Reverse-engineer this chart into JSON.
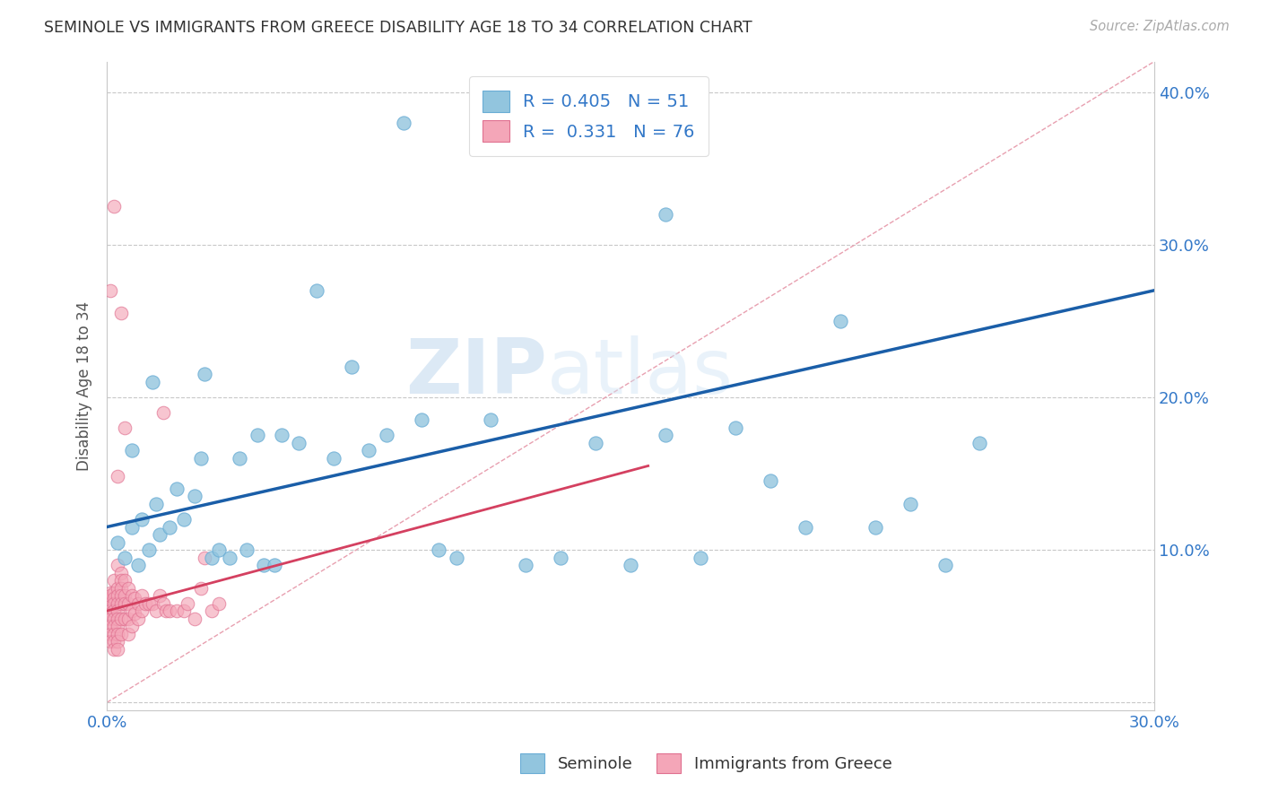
{
  "title": "SEMINOLE VS IMMIGRANTS FROM GREECE DISABILITY AGE 18 TO 34 CORRELATION CHART",
  "source": "Source: ZipAtlas.com",
  "ylabel_text": "Disability Age 18 to 34",
  "xlim": [
    0.0,
    0.3
  ],
  "ylim": [
    -0.005,
    0.42
  ],
  "xticks": [
    0.0,
    0.05,
    0.1,
    0.15,
    0.2,
    0.25,
    0.3
  ],
  "yticks": [
    0.0,
    0.1,
    0.2,
    0.3,
    0.4
  ],
  "color_blue": "#92c5de",
  "color_pink": "#f4a6b8",
  "color_blue_line": "#1a5ea8",
  "color_pink_line": "#d44060",
  "color_diag": "#e8b0bc",
  "blue_R": 0.405,
  "blue_N": 51,
  "pink_R": 0.331,
  "pink_N": 76,
  "watermark_zip": "ZIP",
  "watermark_atlas": "atlas",
  "background_color": "#ffffff",
  "grid_color": "#c8c8c8",
  "seminole_x": [
    0.003,
    0.005,
    0.007,
    0.009,
    0.01,
    0.012,
    0.014,
    0.015,
    0.018,
    0.02,
    0.022,
    0.025,
    0.027,
    0.03,
    0.032,
    0.035,
    0.038,
    0.04,
    0.043,
    0.045,
    0.05,
    0.055,
    0.06,
    0.065,
    0.07,
    0.075,
    0.08,
    0.09,
    0.095,
    0.1,
    0.11,
    0.12,
    0.13,
    0.14,
    0.15,
    0.16,
    0.17,
    0.18,
    0.19,
    0.2,
    0.21,
    0.22,
    0.23,
    0.24,
    0.25,
    0.007,
    0.013,
    0.028,
    0.048,
    0.085,
    0.16
  ],
  "seminole_y": [
    0.105,
    0.095,
    0.115,
    0.09,
    0.12,
    0.1,
    0.13,
    0.11,
    0.115,
    0.14,
    0.12,
    0.135,
    0.16,
    0.095,
    0.1,
    0.095,
    0.16,
    0.1,
    0.175,
    0.09,
    0.175,
    0.17,
    0.27,
    0.16,
    0.22,
    0.165,
    0.175,
    0.185,
    0.1,
    0.095,
    0.185,
    0.09,
    0.095,
    0.17,
    0.09,
    0.175,
    0.095,
    0.18,
    0.145,
    0.115,
    0.25,
    0.115,
    0.13,
    0.09,
    0.17,
    0.165,
    0.21,
    0.215,
    0.09,
    0.38,
    0.32
  ],
  "greece_x": [
    0.001,
    0.001,
    0.001,
    0.001,
    0.001,
    0.001,
    0.001,
    0.001,
    0.001,
    0.001,
    0.002,
    0.002,
    0.002,
    0.002,
    0.002,
    0.002,
    0.002,
    0.002,
    0.002,
    0.002,
    0.003,
    0.003,
    0.003,
    0.003,
    0.003,
    0.003,
    0.003,
    0.003,
    0.003,
    0.003,
    0.004,
    0.004,
    0.004,
    0.004,
    0.004,
    0.004,
    0.004,
    0.005,
    0.005,
    0.005,
    0.005,
    0.006,
    0.006,
    0.006,
    0.006,
    0.007,
    0.007,
    0.007,
    0.008,
    0.008,
    0.009,
    0.009,
    0.01,
    0.01,
    0.011,
    0.012,
    0.013,
    0.014,
    0.015,
    0.016,
    0.017,
    0.018,
    0.02,
    0.022,
    0.023,
    0.025,
    0.027,
    0.028,
    0.03,
    0.032,
    0.004,
    0.016,
    0.005,
    0.002,
    0.003,
    0.001
  ],
  "greece_y": [
    0.068,
    0.072,
    0.065,
    0.06,
    0.058,
    0.055,
    0.05,
    0.045,
    0.04,
    0.07,
    0.072,
    0.068,
    0.065,
    0.06,
    0.055,
    0.05,
    0.045,
    0.04,
    0.035,
    0.08,
    0.075,
    0.07,
    0.065,
    0.06,
    0.055,
    0.05,
    0.045,
    0.04,
    0.035,
    0.09,
    0.085,
    0.08,
    0.075,
    0.07,
    0.065,
    0.055,
    0.045,
    0.08,
    0.07,
    0.065,
    0.055,
    0.075,
    0.065,
    0.055,
    0.045,
    0.07,
    0.06,
    0.05,
    0.068,
    0.058,
    0.065,
    0.055,
    0.07,
    0.06,
    0.065,
    0.065,
    0.065,
    0.06,
    0.07,
    0.065,
    0.06,
    0.06,
    0.06,
    0.06,
    0.065,
    0.055,
    0.075,
    0.095,
    0.06,
    0.065,
    0.255,
    0.19,
    0.18,
    0.325,
    0.148,
    0.27
  ]
}
